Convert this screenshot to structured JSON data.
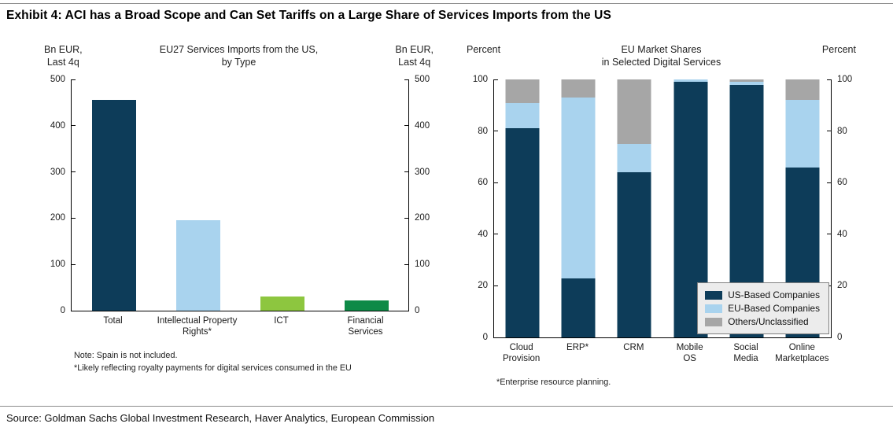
{
  "header": {
    "title": "Exhibit 4: ACI has a Broad Scope and Can Set Tariffs on a Large Share of Services Imports from the US"
  },
  "footer": {
    "source": "Source: Goldman Sachs Global Investment Research, Haver Analytics, European Commission"
  },
  "colors": {
    "navy": "#0d3c59",
    "light_blue": "#a9d3ee",
    "light_green": "#8dc63f",
    "dark_green": "#0e8a47",
    "gray": "#a6a6a6"
  },
  "chart_data": [
    {
      "type": "bar",
      "title": "EU27 Services Imports from the US,\nby Type",
      "left_axis_label": "Bn EUR,\nLast 4q",
      "right_axis_label": "Bn EUR,\nLast 4q",
      "categories": [
        "Total",
        "Intellectual Property\nRights*",
        "ICT",
        "Financial Services"
      ],
      "values": [
        455,
        195,
        30,
        22
      ],
      "bar_colors": [
        "navy",
        "light_blue",
        "light_green",
        "dark_green"
      ],
      "ylim": [
        0,
        500
      ],
      "yticks": [
        0,
        100,
        200,
        300,
        400,
        500
      ],
      "grid": false,
      "notes": [
        "Note: Spain is not included.",
        "*Likely reflecting royalty payments for digital services consumed in the EU"
      ]
    },
    {
      "type": "stacked-bar",
      "title": "EU Market Shares\nin Selected Digital Services",
      "left_axis_label": "Percent",
      "right_axis_label": "Percent",
      "categories": [
        "Cloud\nProvision",
        "ERP*",
        "CRM",
        "Mobile\nOS",
        "Social\nMedia",
        "Online\nMarketplaces"
      ],
      "series": [
        {
          "name": "US-Based Companies",
          "color": "navy",
          "values": [
            81,
            23,
            64,
            99,
            98,
            66
          ]
        },
        {
          "name": "EU-Based Companies",
          "color": "light_blue",
          "values": [
            10,
            70,
            11,
            1,
            1,
            26
          ]
        },
        {
          "name": "Others/Unclassified",
          "color": "gray",
          "values": [
            9,
            7,
            25,
            0,
            1,
            8
          ]
        }
      ],
      "ylim": [
        0,
        100
      ],
      "yticks": [
        0,
        20,
        40,
        60,
        80,
        100
      ],
      "grid": false,
      "legend_position": "inside-bottom-right",
      "notes": [
        "*Enterprise resource planning."
      ]
    }
  ]
}
